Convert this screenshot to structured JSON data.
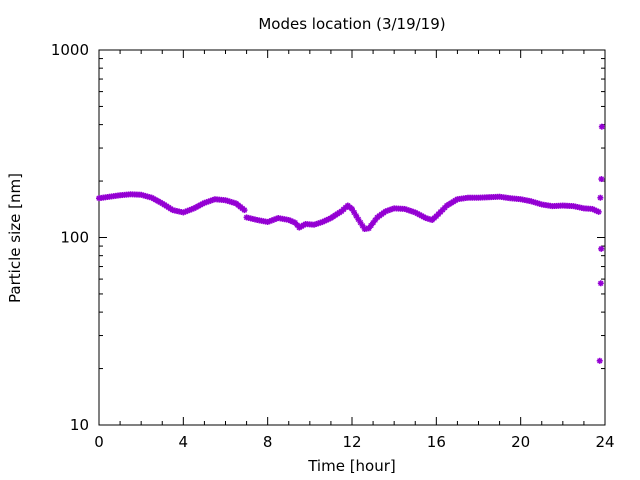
{
  "chart_data": {
    "type": "scatter",
    "title": "Modes location (3/19/19)",
    "xlabel": "Time [hour]",
    "ylabel": "Particle size [nm]",
    "xlim": [
      0,
      24
    ],
    "ylim": [
      10,
      1000
    ],
    "yscale": "log",
    "grid": false,
    "legend": "none",
    "xticks": [
      0,
      4,
      8,
      12,
      16,
      20,
      24
    ],
    "xtick_labels": [
      "0",
      "4",
      "8",
      "12",
      "16",
      "20",
      "24"
    ],
    "yticks": [
      10,
      100,
      1000
    ],
    "ytick_labels": [
      "10",
      "100",
      "1000"
    ],
    "marker_color": "#9400d3",
    "curve": [
      [
        0.0,
        162
      ],
      [
        0.5,
        165
      ],
      [
        1.0,
        168
      ],
      [
        1.5,
        170
      ],
      [
        2.0,
        169
      ],
      [
        2.5,
        163
      ],
      [
        3.0,
        152
      ],
      [
        3.5,
        140
      ],
      [
        4.0,
        136
      ],
      [
        4.5,
        143
      ],
      [
        5.0,
        153
      ],
      [
        5.5,
        160
      ],
      [
        6.0,
        158
      ],
      [
        6.5,
        152
      ],
      [
        6.9,
        140
      ],
      [
        7.0,
        128
      ],
      [
        7.5,
        124
      ],
      [
        8.0,
        121
      ],
      [
        8.5,
        127
      ],
      [
        9.0,
        124
      ],
      [
        9.3,
        120
      ],
      [
        9.5,
        113
      ],
      [
        9.8,
        118
      ],
      [
        10.2,
        117
      ],
      [
        10.6,
        121
      ],
      [
        11.0,
        127
      ],
      [
        11.5,
        138
      ],
      [
        11.8,
        148
      ],
      [
        12.0,
        142
      ],
      [
        12.3,
        125
      ],
      [
        12.6,
        111
      ],
      [
        12.8,
        112
      ],
      [
        13.2,
        128
      ],
      [
        13.6,
        138
      ],
      [
        14.0,
        143
      ],
      [
        14.5,
        142
      ],
      [
        15.0,
        136
      ],
      [
        15.5,
        127
      ],
      [
        15.8,
        124
      ],
      [
        16.0,
        130
      ],
      [
        16.5,
        148
      ],
      [
        17.0,
        160
      ],
      [
        17.5,
        163
      ],
      [
        18.0,
        163
      ],
      [
        18.5,
        164
      ],
      [
        19.0,
        165
      ],
      [
        19.5,
        162
      ],
      [
        20.0,
        160
      ],
      [
        20.5,
        156
      ],
      [
        21.0,
        150
      ],
      [
        21.5,
        147
      ],
      [
        22.0,
        148
      ],
      [
        22.5,
        147
      ],
      [
        23.0,
        143
      ],
      [
        23.4,
        142
      ],
      [
        23.7,
        137
      ]
    ],
    "outliers": [
      {
        "x": 23.75,
        "y": 22
      },
      {
        "x": 23.8,
        "y": 57
      },
      {
        "x": 23.82,
        "y": 87
      },
      {
        "x": 23.78,
        "y": 163
      },
      {
        "x": 23.83,
        "y": 205
      },
      {
        "x": 23.85,
        "y": 390
      }
    ]
  }
}
